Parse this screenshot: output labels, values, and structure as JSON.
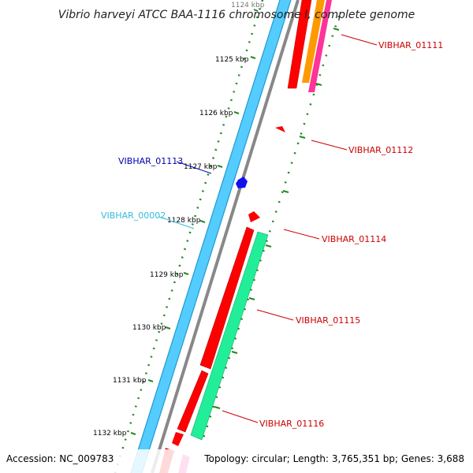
{
  "title": "Vibrio harveyi ATCC BAA-1116 chromosome I, complete genome",
  "footer": {
    "accession": "Accession: NC_009783",
    "stats": "Topology: circular; Length: 3,765,351 bp; Genes: 3,688"
  },
  "ruler_ticks": [
    {
      "label": "1124 kbp",
      "faded": true
    },
    {
      "label": "1125 kbp"
    },
    {
      "label": "1126 kbp"
    },
    {
      "label": "1127 kbp"
    },
    {
      "label": "1128 kbp"
    },
    {
      "label": "1129 kbp"
    },
    {
      "label": "1130 kbp"
    },
    {
      "label": "1131 kbp"
    },
    {
      "label": "1132 kbp"
    }
  ],
  "gene_labels": [
    {
      "text": "VIBHAR_01111",
      "color": "#cc0000"
    },
    {
      "text": "VIBHAR_01112",
      "color": "#cc0000"
    },
    {
      "text": "VIBHAR_01113",
      "color": "#0000aa"
    },
    {
      "text": "VIBHAR_00002",
      "color": "#33bbdd"
    },
    {
      "text": "VIBHAR_01114",
      "color": "#cc0000"
    },
    {
      "text": "VIBHAR_01115",
      "color": "#cc0000"
    },
    {
      "text": "VIBHAR_01116",
      "color": "#cc0000"
    }
  ],
  "colors": {
    "backbone": "#55ccff",
    "backbone_edge": "#2299cc",
    "cds": "#ff0000",
    "cds_dark": "#bb0000",
    "gene_green": "#22ee99",
    "gene_orange": "#ff9900",
    "gene_pink": "#ff3399",
    "gene_blue": "#1111ee",
    "ruler_dot": "#228822",
    "ruler_tick": "#228822",
    "gc_line": "#888888"
  }
}
